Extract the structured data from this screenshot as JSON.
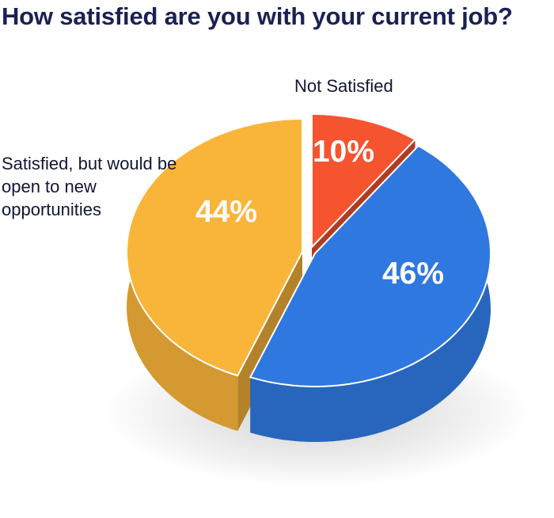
{
  "chart_data": {
    "type": "pie",
    "title": "How satisfied are you with your current job?",
    "slices": [
      {
        "label": "Not Satisfied",
        "value": 10,
        "display": "10%",
        "color": "#f5542f"
      },
      {
        "label": "",
        "value": 46,
        "display": "46%",
        "color": "#2f78e0"
      },
      {
        "label": "Satisfied, but would be open to new opportunities",
        "value": 44,
        "display": "44%",
        "color": "#f9b43a"
      }
    ],
    "legend": "none",
    "style": "3d-exploded"
  }
}
